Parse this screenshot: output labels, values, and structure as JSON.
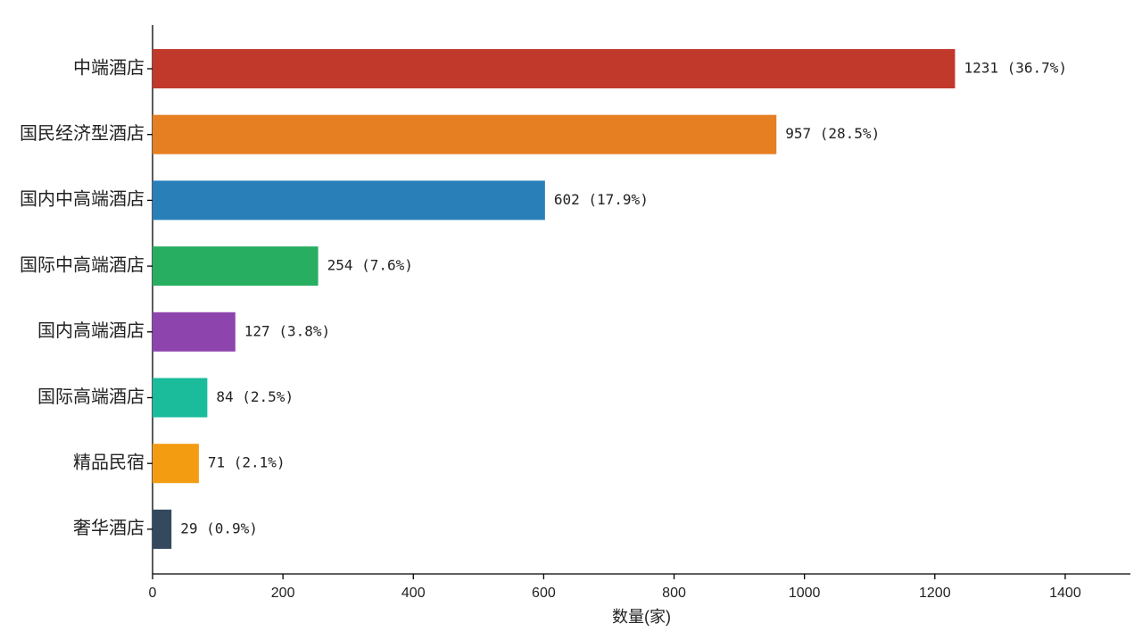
{
  "chart_data": {
    "type": "barh",
    "xlabel": "数量(家)",
    "categories": [
      "中端酒店",
      "国民经济型酒店",
      "国内中高端酒店",
      "国际中高端酒店",
      "国内高端酒店",
      "国际高端酒店",
      "精品民宿",
      "奢华酒店"
    ],
    "values": [
      1231,
      957,
      602,
      254,
      127,
      84,
      71,
      29
    ],
    "value_labels": [
      "1231 (36.7%)",
      "957 (28.5%)",
      "602 (17.9%)",
      "254 (7.6%)",
      "127 (3.8%)",
      "84 (2.5%)",
      "71 (2.1%)",
      "29 (0.9%)"
    ],
    "colors": [
      "#c0392b",
      "#e67e22",
      "#2980b9",
      "#27ae60",
      "#8e44ad",
      "#1abc9c",
      "#f39c12",
      "#34495e"
    ],
    "xlim": [
      0,
      1500
    ],
    "xticks": [
      0,
      200,
      400,
      600,
      800,
      1000,
      1200,
      1400
    ],
    "grid": false
  }
}
